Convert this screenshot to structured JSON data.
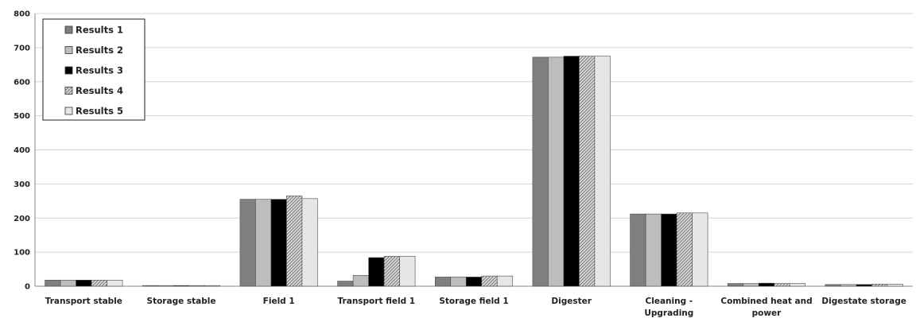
{
  "chart_data": {
    "type": "bar",
    "title": "",
    "xlabel": "",
    "ylabel": "",
    "ylim": [
      0,
      800
    ],
    "yticks": [
      0,
      100,
      200,
      300,
      400,
      500,
      600,
      700,
      800
    ],
    "grid": true,
    "legend_position": "top-left",
    "categories": [
      [
        "Transport stable"
      ],
      [
        "Storage stable"
      ],
      [
        "Field 1"
      ],
      [
        "Transport field 1"
      ],
      [
        "Storage field 1"
      ],
      [
        "Digester"
      ],
      [
        "Cleaning -",
        "Upgrading"
      ],
      [
        "Combined heat and",
        "power"
      ],
      [
        "Digestate storage"
      ]
    ],
    "series": [
      {
        "name": "Results 1",
        "color": "#7f7f7f",
        "pattern": "solid",
        "values": [
          18,
          2,
          255,
          15,
          27,
          672,
          212,
          8,
          5
        ]
      },
      {
        "name": "Results 2",
        "color": "#bdbdbd",
        "pattern": "solid",
        "values": [
          18,
          2,
          255,
          32,
          27,
          672,
          212,
          8,
          5
        ]
      },
      {
        "name": "Results 3",
        "color": "#000000",
        "pattern": "solid",
        "values": [
          18,
          2,
          255,
          84,
          27,
          675,
          212,
          9,
          5
        ]
      },
      {
        "name": "Results 4",
        "color": "#c8c8c8",
        "pattern": "hatched",
        "values": [
          18,
          2,
          265,
          88,
          30,
          675,
          215,
          8,
          6
        ]
      },
      {
        "name": "Results 5",
        "color": "#e6e6e6",
        "pattern": "solid",
        "values": [
          18,
          2,
          257,
          88,
          30,
          675,
          215,
          8,
          6
        ]
      }
    ]
  }
}
